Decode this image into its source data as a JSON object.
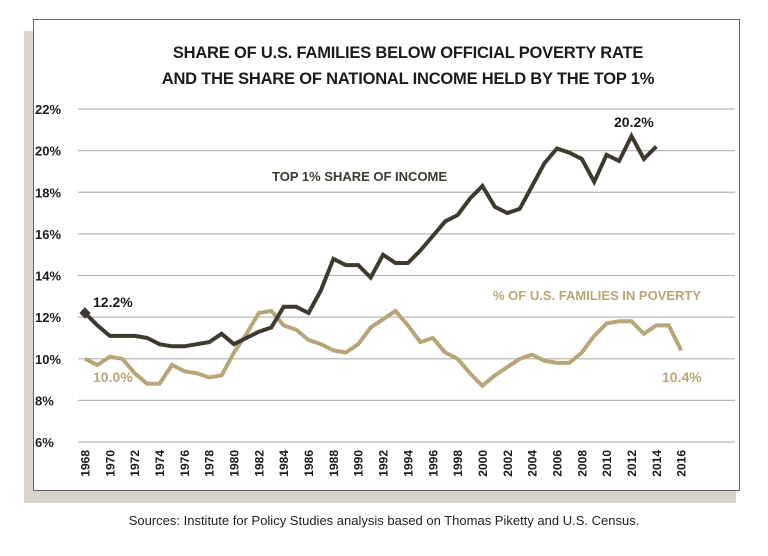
{
  "chart_data": {
    "type": "line",
    "title": "SHARE OF U.S. FAMILIES BELOW OFFICIAL POVERTY RATE",
    "subtitle": "AND THE SHARE OF NATIONAL INCOME HELD BY THE TOP 1%",
    "xlabel": "",
    "ylabel": "",
    "ylim": [
      6,
      22
    ],
    "xlim": [
      1968,
      2016
    ],
    "yticks": [
      "22%",
      "20%",
      "18%",
      "16%",
      "14%",
      "12%",
      "10%",
      "8%",
      "6%"
    ],
    "ytick_values": [
      22,
      20,
      18,
      16,
      14,
      12,
      10,
      8,
      6
    ],
    "xticks": [
      "1968",
      "1970",
      "1972",
      "1974",
      "1976",
      "1978",
      "1980",
      "1982",
      "1984",
      "1986",
      "1988",
      "1990",
      "1992",
      "1994",
      "1996",
      "1998",
      "2000",
      "2002",
      "2004",
      "2006",
      "2008",
      "2010",
      "2012",
      "2014",
      "2016"
    ],
    "grid": true,
    "series": [
      {
        "name": "TOP 1% SHARE OF INCOME",
        "color": "#3f3a30",
        "x": [
          1968,
          1969,
          1970,
          1971,
          1972,
          1973,
          1974,
          1975,
          1976,
          1977,
          1978,
          1979,
          1980,
          1981,
          1982,
          1983,
          1984,
          1985,
          1986,
          1987,
          1988,
          1989,
          1990,
          1991,
          1992,
          1993,
          1994,
          1995,
          1996,
          1997,
          1998,
          1999,
          2000,
          2001,
          2002,
          2003,
          2004,
          2005,
          2006,
          2007,
          2008,
          2009,
          2010,
          2011,
          2012,
          2013,
          2014
        ],
        "values": [
          12.2,
          11.6,
          11.1,
          11.1,
          11.1,
          11.0,
          10.7,
          10.6,
          10.6,
          10.7,
          10.8,
          11.2,
          10.7,
          11.0,
          11.3,
          11.5,
          12.5,
          12.5,
          12.2,
          13.3,
          14.8,
          14.5,
          14.5,
          13.9,
          15.0,
          14.6,
          14.6,
          15.2,
          15.9,
          16.6,
          16.9,
          17.7,
          18.3,
          17.3,
          17.0,
          17.2,
          18.3,
          19.4,
          20.1,
          19.9,
          19.6,
          18.5,
          19.8,
          19.5,
          20.7,
          19.6,
          20.2
        ]
      },
      {
        "name": "% OF U.S. FAMILIES IN POVERTY",
        "color": "#b8a678",
        "x": [
          1968,
          1969,
          1970,
          1971,
          1972,
          1973,
          1974,
          1975,
          1976,
          1977,
          1978,
          1979,
          1980,
          1981,
          1982,
          1983,
          1984,
          1985,
          1986,
          1987,
          1988,
          1989,
          1990,
          1991,
          1992,
          1993,
          1994,
          1995,
          1996,
          1997,
          1998,
          1999,
          2000,
          2001,
          2002,
          2003,
          2004,
          2005,
          2006,
          2007,
          2008,
          2009,
          2010,
          2011,
          2012,
          2013,
          2014,
          2015,
          2016
        ],
        "values": [
          10.0,
          9.7,
          10.1,
          10.0,
          9.3,
          8.8,
          8.8,
          9.7,
          9.4,
          9.3,
          9.1,
          9.2,
          10.3,
          11.2,
          12.2,
          12.3,
          11.6,
          11.4,
          10.9,
          10.7,
          10.4,
          10.3,
          10.7,
          11.5,
          11.9,
          12.3,
          11.6,
          10.8,
          11.0,
          10.3,
          10.0,
          9.3,
          8.7,
          9.2,
          9.6,
          10.0,
          10.2,
          9.9,
          9.8,
          9.8,
          10.3,
          11.1,
          11.7,
          11.8,
          11.8,
          11.2,
          11.6,
          11.6,
          10.4
        ]
      }
    ],
    "annotations": [
      {
        "text": "12.2%",
        "series": 0,
        "x": 1968
      },
      {
        "text": "20.2%",
        "series": 0,
        "x": 2014
      },
      {
        "text": "10.0%",
        "series": 1,
        "x": 1968
      },
      {
        "text": "10.4%",
        "series": 1,
        "x": 2016
      }
    ],
    "legend": "inline"
  },
  "source": "Sources: Institute for Policy Studies analysis based on Thomas Piketty and U.S. Census."
}
